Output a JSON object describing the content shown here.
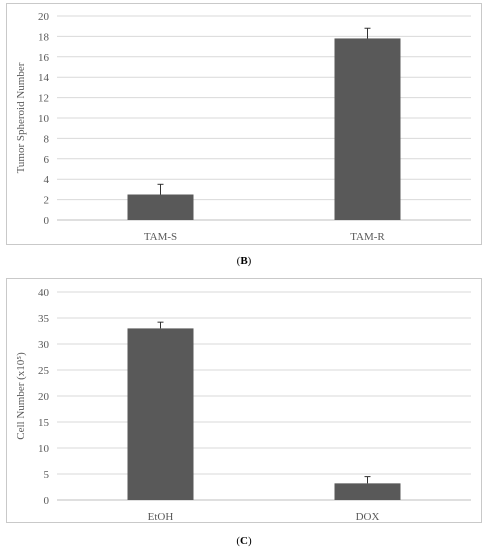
{
  "chart_data": [
    {
      "type": "bar",
      "panel_label": "B",
      "categories": [
        "TAM-S",
        "TAM-R"
      ],
      "values": [
        2.5,
        17.8
      ],
      "errors": [
        1.0,
        1.0
      ],
      "ylabel": "Tumor Spheroid Number",
      "xlabel": "",
      "ylim": [
        0,
        20
      ],
      "yticks": [
        0,
        2,
        4,
        6,
        8,
        10,
        12,
        14,
        16,
        18,
        20
      ],
      "grid": true,
      "bar_color": "#595959"
    },
    {
      "type": "bar",
      "panel_label": "C",
      "categories": [
        "EtOH",
        "DOX"
      ],
      "values": [
        33.0,
        3.2
      ],
      "errors": [
        1.2,
        1.3
      ],
      "ylabel": "Cell Number (x10⁵)",
      "xlabel": "",
      "ylim": [
        0,
        40
      ],
      "yticks": [
        0,
        5,
        10,
        15,
        20,
        25,
        30,
        35,
        40
      ],
      "grid": true,
      "bar_color": "#595959"
    }
  ],
  "captions": {
    "b_open": "(",
    "b_label": "B",
    "b_close": ")",
    "c_open": "(",
    "c_label": "C",
    "c_close": ")"
  }
}
